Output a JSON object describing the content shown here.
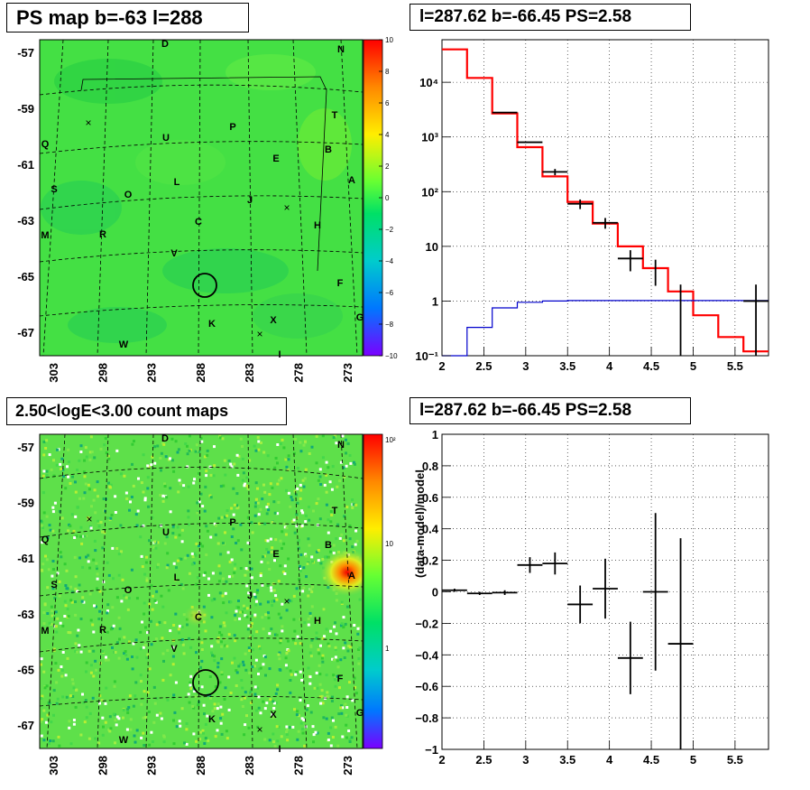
{
  "panels": {
    "tl": {
      "title": "PS map b=-63 l=288",
      "yticks": [
        "-57",
        "-59",
        "-61",
        "-63",
        "-65",
        "-67"
      ],
      "xticks": [
        "303",
        "298",
        "293",
        "288",
        "283",
        "278",
        "273"
      ],
      "cbar": [
        "10",
        "8",
        "6",
        "4",
        "2",
        "0",
        "−2",
        "−4",
        "−6",
        "−8",
        "−10"
      ]
    },
    "tr": {
      "title": "l=287.62 b=-66.45 PS=2.58",
      "yticks": [
        "10⁴",
        "10³",
        "10²",
        "10",
        "1",
        "10⁻¹"
      ],
      "xticks": [
        "2",
        "2.5",
        "3",
        "3.5",
        "4",
        "4.5",
        "5",
        "5.5"
      ]
    },
    "bl": {
      "title": "2.50<logE<3.00 count maps",
      "yticks": [
        "-57",
        "-59",
        "-61",
        "-63",
        "-65",
        "-67"
      ],
      "xticks": [
        "303",
        "298",
        "293",
        "288",
        "283",
        "278",
        "273"
      ],
      "cbar": [
        "10²",
        "10",
        "1"
      ]
    },
    "br": {
      "title": "l=287.62 b=-66.45 PS=2.58",
      "ylabel": "(data-model)/model",
      "yticks": [
        "1",
        "0.8",
        "0.6",
        "0.4",
        "0.2",
        "0",
        "−0.2",
        "−0.4",
        "−0.6",
        "−0.8",
        "−1"
      ],
      "xticks": [
        "2",
        "2.5",
        "3",
        "3.5",
        "4",
        "4.5",
        "5",
        "5.5"
      ]
    }
  },
  "map_letters": [
    "D",
    "N",
    "T",
    "Q",
    "U",
    "P",
    "B",
    "E",
    "A",
    "S",
    "O",
    "L",
    "J",
    "H",
    "M",
    "R",
    "C",
    "V",
    "F",
    "K",
    "X",
    "G",
    "W",
    "I"
  ],
  "colors": {
    "red": "#ff0000",
    "blue": "#0000cc",
    "black": "#000000",
    "map_green": "#33dd33"
  },
  "chart_data": [
    {
      "type": "heatmap",
      "title": "PS map b=-63 l=288",
      "xlabel": "",
      "ylabel": "",
      "x_range": [
        303,
        272
      ],
      "y_range": [
        -68.5,
        -56.5
      ],
      "z_range": [
        -10,
        10
      ],
      "source_marker": {
        "l": 287.62,
        "b": -66.45
      }
    },
    {
      "type": "line",
      "title": "l=287.62 b=-66.45 PS=2.58",
      "xlim": [
        2,
        5.9
      ],
      "ylim": [
        0.1,
        60000
      ],
      "yscale": "log",
      "series": [
        {
          "color": "red",
          "steps": [
            [
              2,
              2.3,
              40000
            ],
            [
              2.3,
              2.6,
              12000
            ],
            [
              2.6,
              2.9,
              2700
            ],
            [
              2.9,
              3.2,
              650
            ],
            [
              3.2,
              3.5,
              190
            ],
            [
              3.5,
              3.8,
              65
            ],
            [
              3.8,
              4.1,
              26
            ],
            [
              4.1,
              4.4,
              10
            ],
            [
              4.4,
              4.7,
              4
            ],
            [
              4.7,
              5.0,
              1.5
            ],
            [
              5.0,
              5.3,
              0.55
            ],
            [
              5.3,
              5.6,
              0.22
            ],
            [
              5.6,
              5.9,
              0.12
            ]
          ]
        },
        {
          "color": "blue",
          "steps": [
            [
              2,
              2.3,
              0.1
            ],
            [
              2.3,
              2.6,
              0.33
            ],
            [
              2.6,
              2.9,
              0.75
            ],
            [
              2.9,
              3.2,
              0.95
            ],
            [
              3.2,
              3.5,
              1.0
            ],
            [
              3.5,
              5.9,
              1.02
            ]
          ]
        },
        {
          "color": "black",
          "points": [
            [
              2.75,
              2800,
              0.15,
              0
            ],
            [
              3.05,
              800,
              0.15,
              0
            ],
            [
              3.35,
              230,
              0.15,
              30
            ],
            [
              3.65,
              60,
              0.15,
              12
            ],
            [
              3.95,
              27,
              0.15,
              6
            ],
            [
              4.25,
              6,
              0.15,
              2.5
            ],
            [
              4.55,
              3.8,
              0,
              1.9
            ],
            [
              4.85,
              0.7,
              0,
              1.3
            ],
            [
              5.75,
              1,
              0.15,
              1.0
            ]
          ]
        }
      ]
    },
    {
      "type": "heatmap",
      "title": "2.50<logE<3.00 count maps",
      "x_range": [
        303,
        272
      ],
      "y_range": [
        -68.5,
        -56.5
      ],
      "z_scale": "log",
      "z_range": [
        0.1,
        120
      ]
    },
    {
      "type": "scatter",
      "title": "l=287.62 b=-66.45 PS=2.58",
      "ylabel": "(data-model)/model",
      "xlim": [
        2,
        5.9
      ],
      "ylim": [
        -1,
        1
      ],
      "points": [
        [
          2.15,
          0.01,
          0.15,
          0.01
        ],
        [
          2.45,
          -0.01,
          0.15,
          0.01
        ],
        [
          2.75,
          -0.005,
          0.15,
          0.015
        ],
        [
          3.05,
          0.17,
          0.15,
          0.05
        ],
        [
          3.35,
          0.18,
          0.15,
          0.07
        ],
        [
          3.65,
          -0.08,
          0.15,
          0.12
        ],
        [
          3.95,
          0.02,
          0.15,
          0.19
        ],
        [
          4.25,
          -0.42,
          0.15,
          0.23
        ],
        [
          4.55,
          0.0,
          0.15,
          0.5
        ],
        [
          4.85,
          -0.33,
          0.15,
          0.67
        ]
      ]
    }
  ]
}
